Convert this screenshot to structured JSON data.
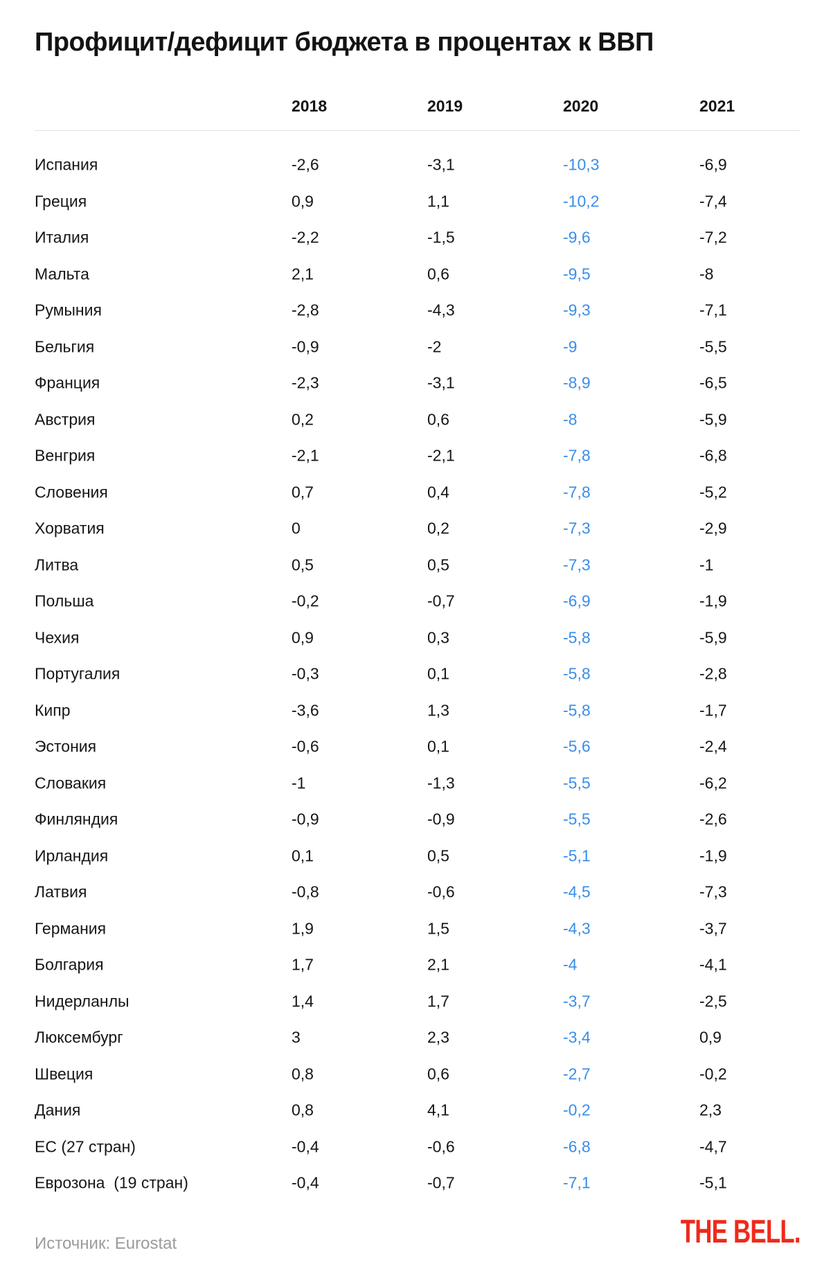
{
  "title": "Профицит/дефицит бюджета в процентах к ВВП",
  "source": "Источник: Eurostat",
  "logo": "THE BELL.",
  "colors": {
    "highlight_blue": "#3a8ee9",
    "text": "#161616",
    "source_gray": "#9b9b9f",
    "logo_red": "#ee2a1b",
    "divider": "#e3e3e6"
  },
  "chart_data": {
    "type": "table",
    "title": "Профицит/дефицит бюджета в процентах к ВВП",
    "columns": [
      "2018",
      "2019",
      "2020",
      "2021"
    ],
    "highlight_column": "2020",
    "rows": [
      {
        "country": "Испания",
        "values": [
          "-2,6",
          "-3,1",
          "-10,3",
          "-6,9"
        ]
      },
      {
        "country": "Греция",
        "values": [
          "0,9",
          "1,1",
          "-10,2",
          "-7,4"
        ]
      },
      {
        "country": "Италия",
        "values": [
          "-2,2",
          "-1,5",
          "-9,6",
          "-7,2"
        ]
      },
      {
        "country": "Мальта",
        "values": [
          "2,1",
          "0,6",
          "-9,5",
          "-8"
        ]
      },
      {
        "country": "Румыния",
        "values": [
          "-2,8",
          "-4,3",
          "-9,3",
          "-7,1"
        ]
      },
      {
        "country": "Бельгия",
        "values": [
          "-0,9",
          "-2",
          "-9",
          "-5,5"
        ]
      },
      {
        "country": "Франция",
        "values": [
          "-2,3",
          "-3,1",
          "-8,9",
          "-6,5"
        ]
      },
      {
        "country": "Австрия",
        "values": [
          "0,2",
          "0,6",
          "-8",
          "-5,9"
        ]
      },
      {
        "country": "Венгрия",
        "values": [
          "-2,1",
          "-2,1",
          "-7,8",
          "-6,8"
        ]
      },
      {
        "country": "Словения",
        "values": [
          "0,7",
          "0,4",
          "-7,8",
          "-5,2"
        ]
      },
      {
        "country": "Хорватия",
        "values": [
          "0",
          "0,2",
          "-7,3",
          "-2,9"
        ]
      },
      {
        "country": "Литва",
        "values": [
          "0,5",
          "0,5",
          "-7,3",
          "-1"
        ]
      },
      {
        "country": "Польша",
        "values": [
          "-0,2",
          "-0,7",
          "-6,9",
          "-1,9"
        ]
      },
      {
        "country": "Чехия",
        "values": [
          "0,9",
          "0,3",
          "-5,8",
          "-5,9"
        ]
      },
      {
        "country": "Португалия",
        "values": [
          "-0,3",
          "0,1",
          "-5,8",
          "-2,8"
        ]
      },
      {
        "country": "Кипр",
        "values": [
          "-3,6",
          "1,3",
          "-5,8",
          "-1,7"
        ]
      },
      {
        "country": "Эстония",
        "values": [
          "-0,6",
          "0,1",
          "-5,6",
          "-2,4"
        ]
      },
      {
        "country": "Словакия",
        "values": [
          "-1",
          "-1,3",
          "-5,5",
          "-6,2"
        ]
      },
      {
        "country": "Финляндия",
        "values": [
          "-0,9",
          "-0,9",
          "-5,5",
          "-2,6"
        ]
      },
      {
        "country": "Ирландия",
        "values": [
          "0,1",
          "0,5",
          "-5,1",
          "-1,9"
        ]
      },
      {
        "country": "Латвия",
        "values": [
          "-0,8",
          "-0,6",
          "-4,5",
          "-7,3"
        ]
      },
      {
        "country": "Германия",
        "values": [
          "1,9",
          "1,5",
          "-4,3",
          "-3,7"
        ]
      },
      {
        "country": "Болгария",
        "values": [
          "1,7",
          "2,1",
          "-4",
          "-4,1"
        ]
      },
      {
        "country": "Нидерланлы",
        "values": [
          "1,4",
          "1,7",
          "-3,7",
          "-2,5"
        ]
      },
      {
        "country": "Люксембург",
        "values": [
          "3",
          "2,3",
          "-3,4",
          "0,9"
        ]
      },
      {
        "country": "Швеция",
        "values": [
          "0,8",
          "0,6",
          "-2,7",
          "-0,2"
        ]
      },
      {
        "country": "Дания",
        "values": [
          "0,8",
          "4,1",
          "-0,2",
          "2,3"
        ]
      },
      {
        "country": "ЕС (27 стран)",
        "values": [
          "-0,4",
          "-0,6",
          "-6,8",
          "-4,7"
        ]
      },
      {
        "country": "Еврозона  (19 стран)",
        "values": [
          "-0,4",
          "-0,7",
          "-7,1",
          "-5,1"
        ]
      }
    ]
  }
}
